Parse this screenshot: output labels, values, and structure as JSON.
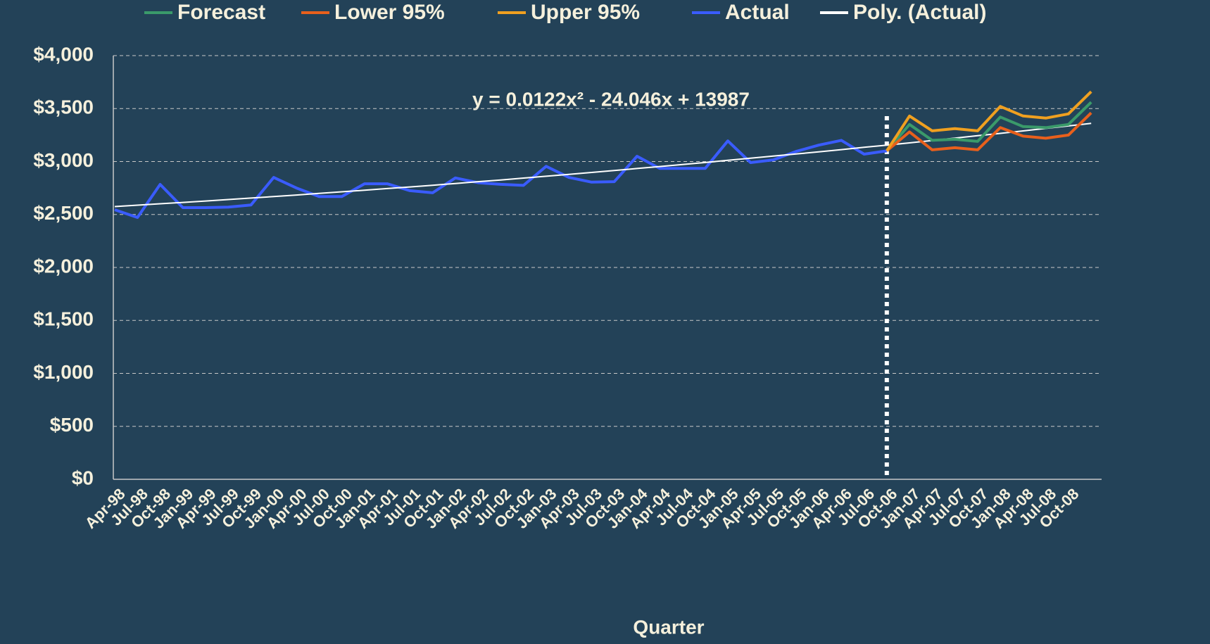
{
  "chart_data": {
    "type": "line",
    "x_label": "Quarter",
    "annotation": "y = 0.0122x² - 24.046x + 13987",
    "categories": [
      "Apr-98",
      "Jul-98",
      "Oct-98",
      "Jan-99",
      "Apr-99",
      "Jul-99",
      "Oct-99",
      "Jan-00",
      "Apr-00",
      "Jul-00",
      "Oct-00",
      "Jan-01",
      "Apr-01",
      "Jul-01",
      "Oct-01",
      "Jan-02",
      "Apr-02",
      "Jul-02",
      "Oct-02",
      "Jan-03",
      "Apr-03",
      "Jul-03",
      "Oct-03",
      "Jan-04",
      "Apr-04",
      "Jul-04",
      "Oct-04",
      "Jan-05",
      "Apr-05",
      "Jul-05",
      "Oct-05",
      "Jan-06",
      "Apr-06",
      "Jul-06",
      "Oct-06",
      "Jan-07",
      "Apr-07",
      "Jul-07",
      "Oct-07",
      "Jan-08",
      "Apr-08",
      "Jul-08",
      "Oct-08",
      null
    ],
    "series": [
      {
        "name": "Forecast",
        "color": "#3a9a6a",
        "values": [
          null,
          null,
          null,
          null,
          null,
          null,
          null,
          null,
          null,
          null,
          null,
          null,
          null,
          null,
          null,
          null,
          null,
          null,
          null,
          null,
          null,
          null,
          null,
          null,
          null,
          null,
          null,
          null,
          null,
          null,
          null,
          null,
          null,
          null,
          3100,
          3350,
          3200,
          3210,
          3190,
          3420,
          3330,
          3320,
          3350,
          3560
        ]
      },
      {
        "name": "Lower 95%",
        "color": "#e8601c",
        "values": [
          null,
          null,
          null,
          null,
          null,
          null,
          null,
          null,
          null,
          null,
          null,
          null,
          null,
          null,
          null,
          null,
          null,
          null,
          null,
          null,
          null,
          null,
          null,
          null,
          null,
          null,
          null,
          null,
          null,
          null,
          null,
          null,
          null,
          null,
          3100,
          3280,
          3110,
          3130,
          3110,
          3320,
          3240,
          3220,
          3250,
          3460
        ]
      },
      {
        "name": "Upper 95%",
        "color": "#f0a020",
        "values": [
          null,
          null,
          null,
          null,
          null,
          null,
          null,
          null,
          null,
          null,
          null,
          null,
          null,
          null,
          null,
          null,
          null,
          null,
          null,
          null,
          null,
          null,
          null,
          null,
          null,
          null,
          null,
          null,
          null,
          null,
          null,
          null,
          null,
          null,
          3100,
          3430,
          3290,
          3310,
          3290,
          3520,
          3430,
          3410,
          3450,
          3660
        ]
      },
      {
        "name": "Actual",
        "color": "#3a5cff",
        "values": [
          2545,
          2472,
          2784,
          2565,
          2565,
          2570,
          2590,
          2850,
          2750,
          2670,
          2670,
          2790,
          2790,
          2725,
          2705,
          2845,
          2800,
          2785,
          2775,
          2955,
          2850,
          2805,
          2810,
          3050,
          2935,
          2935,
          2935,
          3195,
          2990,
          3015,
          3095,
          3155,
          3200,
          3070,
          3100,
          null,
          null,
          null,
          null,
          null,
          null,
          null,
          null,
          null
        ]
      },
      {
        "name": "Poly. (Actual)",
        "color": "#ffffff",
        "values": [
          2575,
          2588,
          2601,
          2614,
          2627,
          2641,
          2655,
          2669,
          2684,
          2699,
          2714,
          2729,
          2745,
          2760,
          2776,
          2793,
          2810,
          2826,
          2844,
          2861,
          2879,
          2897,
          2915,
          2934,
          2953,
          2972,
          2991,
          3011,
          3031,
          3051,
          3071,
          3091,
          3112,
          3134,
          3155,
          3176,
          3199,
          3221,
          3244,
          3266,
          3289,
          3313,
          3336,
          3360
        ]
      }
    ],
    "ylim": [
      0,
      4000
    ],
    "yticks": [
      {
        "value": 0,
        "label": "$0"
      },
      {
        "value": 500,
        "label": "$500"
      },
      {
        "value": 1000,
        "label": "$1,000"
      },
      {
        "value": 1500,
        "label": "$1,500"
      },
      {
        "value": 2000,
        "label": "$2,000"
      },
      {
        "value": 2500,
        "label": "$2,500"
      },
      {
        "value": 3000,
        "label": "$3,000"
      },
      {
        "value": 3500,
        "label": "$3,500"
      },
      {
        "value": 4000,
        "label": "$4,000"
      }
    ],
    "grid": true,
    "legend": "top"
  }
}
